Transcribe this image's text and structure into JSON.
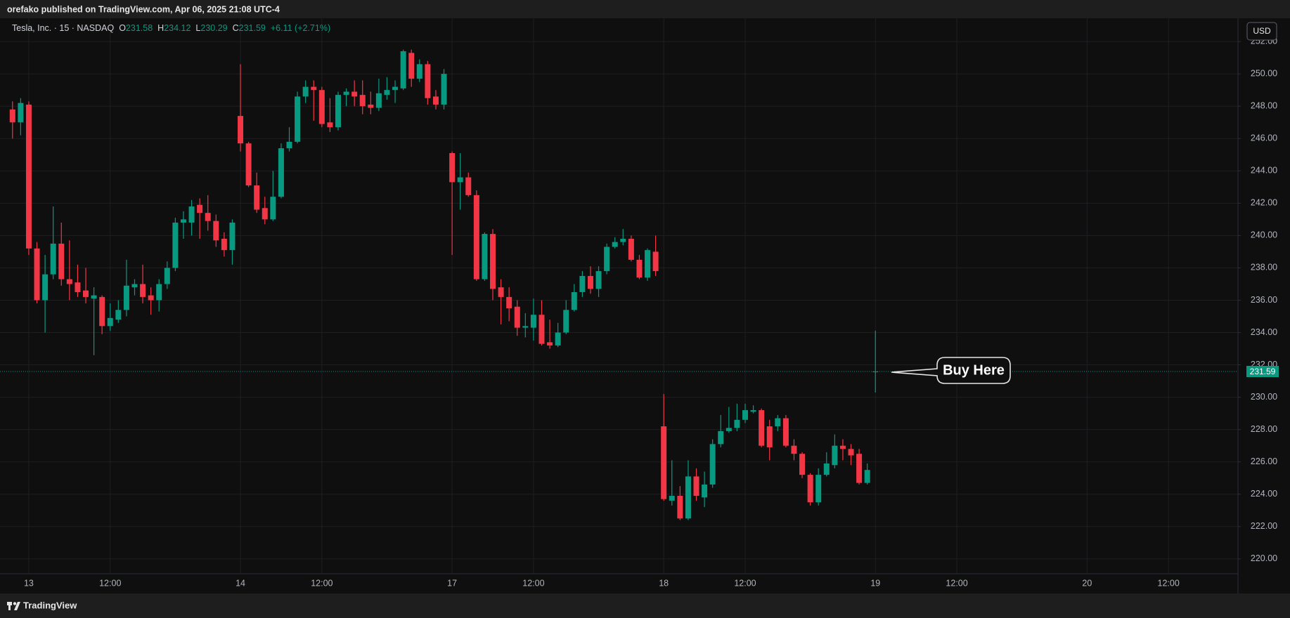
{
  "header": "orefako published on TradingView.com, Apr 06, 2025 21:08 UTC-4",
  "footer": "TradingView",
  "chart_data": {
    "type": "candlestick",
    "symbol": "Tesla, Inc. · 15 · NASDAQ",
    "ohlc_labels": [
      "O",
      "H",
      "L",
      "C"
    ],
    "change": "+6.11 (+2.71%)",
    "currency": "USD",
    "annotation": "Buy Here",
    "up_color": "#089981",
    "down_color": "#f23645",
    "grid": true,
    "ylim": [
      219.08,
      253.44
    ],
    "yticks": [
      {
        "value": 220,
        "label": "220.00"
      },
      {
        "value": 222,
        "label": "222.00"
      },
      {
        "value": 224,
        "label": "224.00"
      },
      {
        "value": 226,
        "label": "226.00"
      },
      {
        "value": 228,
        "label": "228.00"
      },
      {
        "value": 230,
        "label": "230.00"
      },
      {
        "value": 232,
        "label": "232.00"
      },
      {
        "value": 234,
        "label": "234.00"
      },
      {
        "value": 236,
        "label": "236.00"
      },
      {
        "value": 238,
        "label": "238.00"
      },
      {
        "value": 240,
        "label": "240.00"
      },
      {
        "value": 242,
        "label": "242.00"
      },
      {
        "value": 244,
        "label": "244.00"
      },
      {
        "value": 246,
        "label": "246.00"
      },
      {
        "value": 248,
        "label": "248.00"
      },
      {
        "value": 250,
        "label": "250.00"
      },
      {
        "value": 252,
        "label": "252.00"
      }
    ],
    "categories": [
      null,
      null,
      "13",
      null,
      null,
      null,
      null,
      null,
      null,
      null,
      null,
      null,
      "12:00",
      null,
      null,
      null,
      null,
      null,
      null,
      null,
      null,
      null,
      null,
      null,
      null,
      null,
      null,
      null,
      "14",
      null,
      null,
      null,
      null,
      null,
      null,
      null,
      null,
      null,
      "12:00",
      null,
      null,
      null,
      null,
      null,
      null,
      null,
      null,
      null,
      null,
      null,
      null,
      null,
      null,
      null,
      "17",
      null,
      null,
      null,
      null,
      null,
      null,
      null,
      null,
      null,
      "12:00",
      null,
      null,
      null,
      null,
      null,
      null,
      null,
      null,
      null,
      null,
      null,
      null,
      null,
      null,
      null,
      "18",
      null,
      null,
      null,
      null,
      null,
      null,
      null,
      null,
      null,
      "12:00",
      null,
      null,
      null,
      null,
      null,
      null,
      null,
      null,
      null,
      null,
      null,
      null,
      null,
      null,
      null,
      "19",
      null,
      null,
      null,
      null,
      null,
      null,
      null,
      null,
      null,
      "12:00",
      null,
      null,
      null,
      null,
      null,
      null,
      null,
      null,
      null,
      null,
      null,
      null,
      null,
      null,
      null,
      "20",
      null,
      null,
      null,
      null,
      null,
      null,
      null,
      null,
      null,
      "12:00",
      null,
      null,
      null,
      null,
      null,
      null,
      null
    ],
    "open": [
      247.8,
      247.0,
      248.1,
      239.2,
      236.0,
      237.6,
      239.5,
      237.3,
      237.1,
      236.6,
      236.1,
      236.2,
      234.4,
      234.8,
      235.4,
      236.8,
      237.0,
      236.3,
      236.0,
      237.0,
      238.0,
      240.8,
      240.8,
      241.9,
      241.4,
      240.9,
      239.8,
      239.1,
      247.4,
      245.7,
      243.1,
      241.7,
      241.0,
      242.4,
      245.4,
      245.8,
      248.6,
      249.2,
      249.0,
      247.0,
      246.7,
      248.7,
      248.9,
      248.7,
      248.1,
      247.9,
      248.7,
      249.0,
      249.1,
      251.3,
      249.7,
      250.6,
      248.6,
      248.1,
      245.1,
      243.3,
      243.6,
      242.5,
      237.3,
      240.1,
      236.8,
      236.2,
      235.6,
      234.3,
      234.3,
      235.1,
      233.4,
      233.2,
      234.0,
      235.4,
      236.5,
      237.5,
      236.7,
      237.8,
      239.3,
      239.6,
      239.8,
      238.5,
      237.4,
      239.0,
      228.2,
      223.6,
      223.9,
      222.5,
      225.1,
      223.8,
      224.6,
      227.1,
      227.9,
      228.1,
      228.6,
      229.1,
      229.2,
      228.2,
      228.2,
      228.7,
      227.0,
      226.5,
      225.2,
      223.5,
      225.2,
      225.8,
      227.0,
      226.8,
      226.5,
      224.7,
      231.58,
      null,
      null,
      null,
      null,
      null,
      null,
      null,
      null,
      null,
      null,
      null,
      null,
      null,
      null,
      null,
      null,
      null,
      null,
      null,
      null,
      null,
      null,
      null,
      null,
      null,
      null,
      null,
      null,
      null,
      null,
      null,
      null,
      null,
      null,
      null,
      null,
      null,
      null,
      null,
      null,
      null,
      null,
      null
    ],
    "high": [
      248.3,
      248.5,
      248.3,
      239.6,
      238.8,
      241.8,
      240.8,
      239.7,
      238.2,
      238.0,
      236.8,
      236.3,
      235.8,
      236.0,
      238.5,
      237.3,
      238.2,
      236.8,
      237.3,
      238.4,
      241.1,
      241.5,
      242.2,
      242.3,
      242.5,
      241.3,
      240.2,
      241.0,
      250.6,
      245.8,
      243.9,
      242.4,
      244.0,
      245.7,
      246.7,
      248.9,
      249.6,
      249.6,
      249.2,
      248.5,
      248.9,
      249.1,
      249.6,
      249.6,
      248.9,
      249.7,
      249.8,
      249.6,
      251.5,
      251.5,
      250.9,
      250.8,
      249.0,
      250.3,
      245.2,
      245.1,
      243.9,
      242.8,
      240.2,
      240.4,
      237.3,
      236.8,
      236.0,
      235.2,
      236.1,
      236.0,
      234.8,
      234.6,
      236.0,
      237.0,
      237.8,
      238.1,
      238.1,
      239.5,
      239.9,
      240.4,
      240.0,
      238.8,
      239.2,
      240.0,
      230.2,
      226.1,
      224.5,
      226.1,
      225.6,
      225.4,
      227.4,
      228.9,
      229.4,
      229.6,
      229.6,
      229.5,
      229.3,
      228.6,
      228.9,
      228.9,
      227.4,
      226.6,
      225.3,
      225.6,
      226.6,
      227.7,
      227.4,
      227.1,
      226.8,
      225.9,
      234.12,
      null,
      null,
      null,
      null,
      null,
      null,
      null,
      null,
      null,
      null,
      null,
      null,
      null,
      null,
      null,
      null,
      null,
      null,
      null,
      null,
      null,
      null,
      null,
      null,
      null,
      null,
      null,
      null,
      null,
      null,
      null,
      null,
      null,
      null,
      null,
      null,
      null,
      null,
      null,
      null,
      null,
      null,
      null
    ],
    "low": [
      246.0,
      246.2,
      238.8,
      235.8,
      234.0,
      237.3,
      236.9,
      236.0,
      236.2,
      235.8,
      232.6,
      233.9,
      234.1,
      234.6,
      235.0,
      236.3,
      235.8,
      235.1,
      235.3,
      236.7,
      237.8,
      239.8,
      240.0,
      239.8,
      240.3,
      239.3,
      238.7,
      238.2,
      245.2,
      243.0,
      241.4,
      240.7,
      240.9,
      242.3,
      245.2,
      245.7,
      248.2,
      247.1,
      246.7,
      246.4,
      246.5,
      248.0,
      248.0,
      247.5,
      247.5,
      247.7,
      248.4,
      248.2,
      249.0,
      249.2,
      249.5,
      248.1,
      247.8,
      247.8,
      238.8,
      241.6,
      242.4,
      237.2,
      237.2,
      236.0,
      234.5,
      234.7,
      233.8,
      233.7,
      233.5,
      233.2,
      233.0,
      233.1,
      233.9,
      235.3,
      236.2,
      236.4,
      236.2,
      237.6,
      239.2,
      239.4,
      238.4,
      237.3,
      237.2,
      237.5,
      223.6,
      223.3,
      222.4,
      222.4,
      223.6,
      223.2,
      224.4,
      226.9,
      227.8,
      227.9,
      228.4,
      229.0,
      226.9,
      226.1,
      227.9,
      226.9,
      226.1,
      225.0,
      223.3,
      223.3,
      225.1,
      225.6,
      226.1,
      225.8,
      224.6,
      224.6,
      230.29,
      null,
      null,
      null,
      null,
      null,
      null,
      null,
      null,
      null,
      null,
      null,
      null,
      null,
      null,
      null,
      null,
      null,
      null,
      null,
      null,
      null,
      null,
      null,
      null,
      null,
      null,
      null,
      null,
      null,
      null,
      null,
      null,
      null,
      null,
      null,
      null,
      null,
      null,
      null,
      null,
      null,
      null,
      null
    ],
    "close": [
      247.0,
      248.2,
      239.2,
      236.0,
      237.6,
      239.5,
      237.3,
      237.0,
      236.5,
      236.2,
      236.3,
      234.4,
      234.9,
      235.4,
      236.9,
      237.0,
      236.2,
      236.0,
      237.0,
      238.0,
      240.8,
      241.0,
      241.8,
      241.4,
      240.9,
      239.7,
      239.1,
      240.8,
      245.7,
      243.1,
      241.6,
      241.0,
      242.4,
      245.4,
      245.8,
      248.6,
      249.2,
      249.0,
      246.9,
      246.7,
      248.7,
      248.9,
      248.6,
      248.0,
      247.9,
      248.8,
      249.0,
      249.2,
      251.4,
      249.7,
      250.6,
      248.5,
      248.1,
      250.0,
      243.3,
      243.6,
      242.5,
      237.3,
      240.1,
      236.7,
      236.2,
      235.5,
      234.3,
      234.4,
      235.1,
      233.3,
      233.2,
      234.0,
      235.4,
      236.5,
      237.5,
      236.7,
      237.8,
      239.3,
      239.6,
      239.8,
      238.5,
      237.4,
      239.1,
      237.8,
      223.7,
      223.9,
      222.5,
      225.1,
      223.9,
      224.6,
      227.1,
      227.9,
      228.1,
      228.6,
      229.2,
      229.2,
      227.0,
      226.9,
      228.7,
      227.0,
      226.5,
      225.2,
      223.5,
      225.2,
      225.9,
      227.0,
      226.8,
      226.4,
      224.7,
      225.5,
      231.59,
      null,
      null,
      null,
      null,
      null,
      null,
      null,
      null,
      null,
      null,
      null,
      null,
      null,
      null,
      null,
      null,
      null,
      null,
      null,
      null,
      null,
      null,
      null,
      null,
      null,
      null,
      null,
      null,
      null,
      null,
      null,
      null,
      null,
      null,
      null,
      null,
      null,
      null,
      null,
      null,
      null,
      null,
      null
    ]
  }
}
